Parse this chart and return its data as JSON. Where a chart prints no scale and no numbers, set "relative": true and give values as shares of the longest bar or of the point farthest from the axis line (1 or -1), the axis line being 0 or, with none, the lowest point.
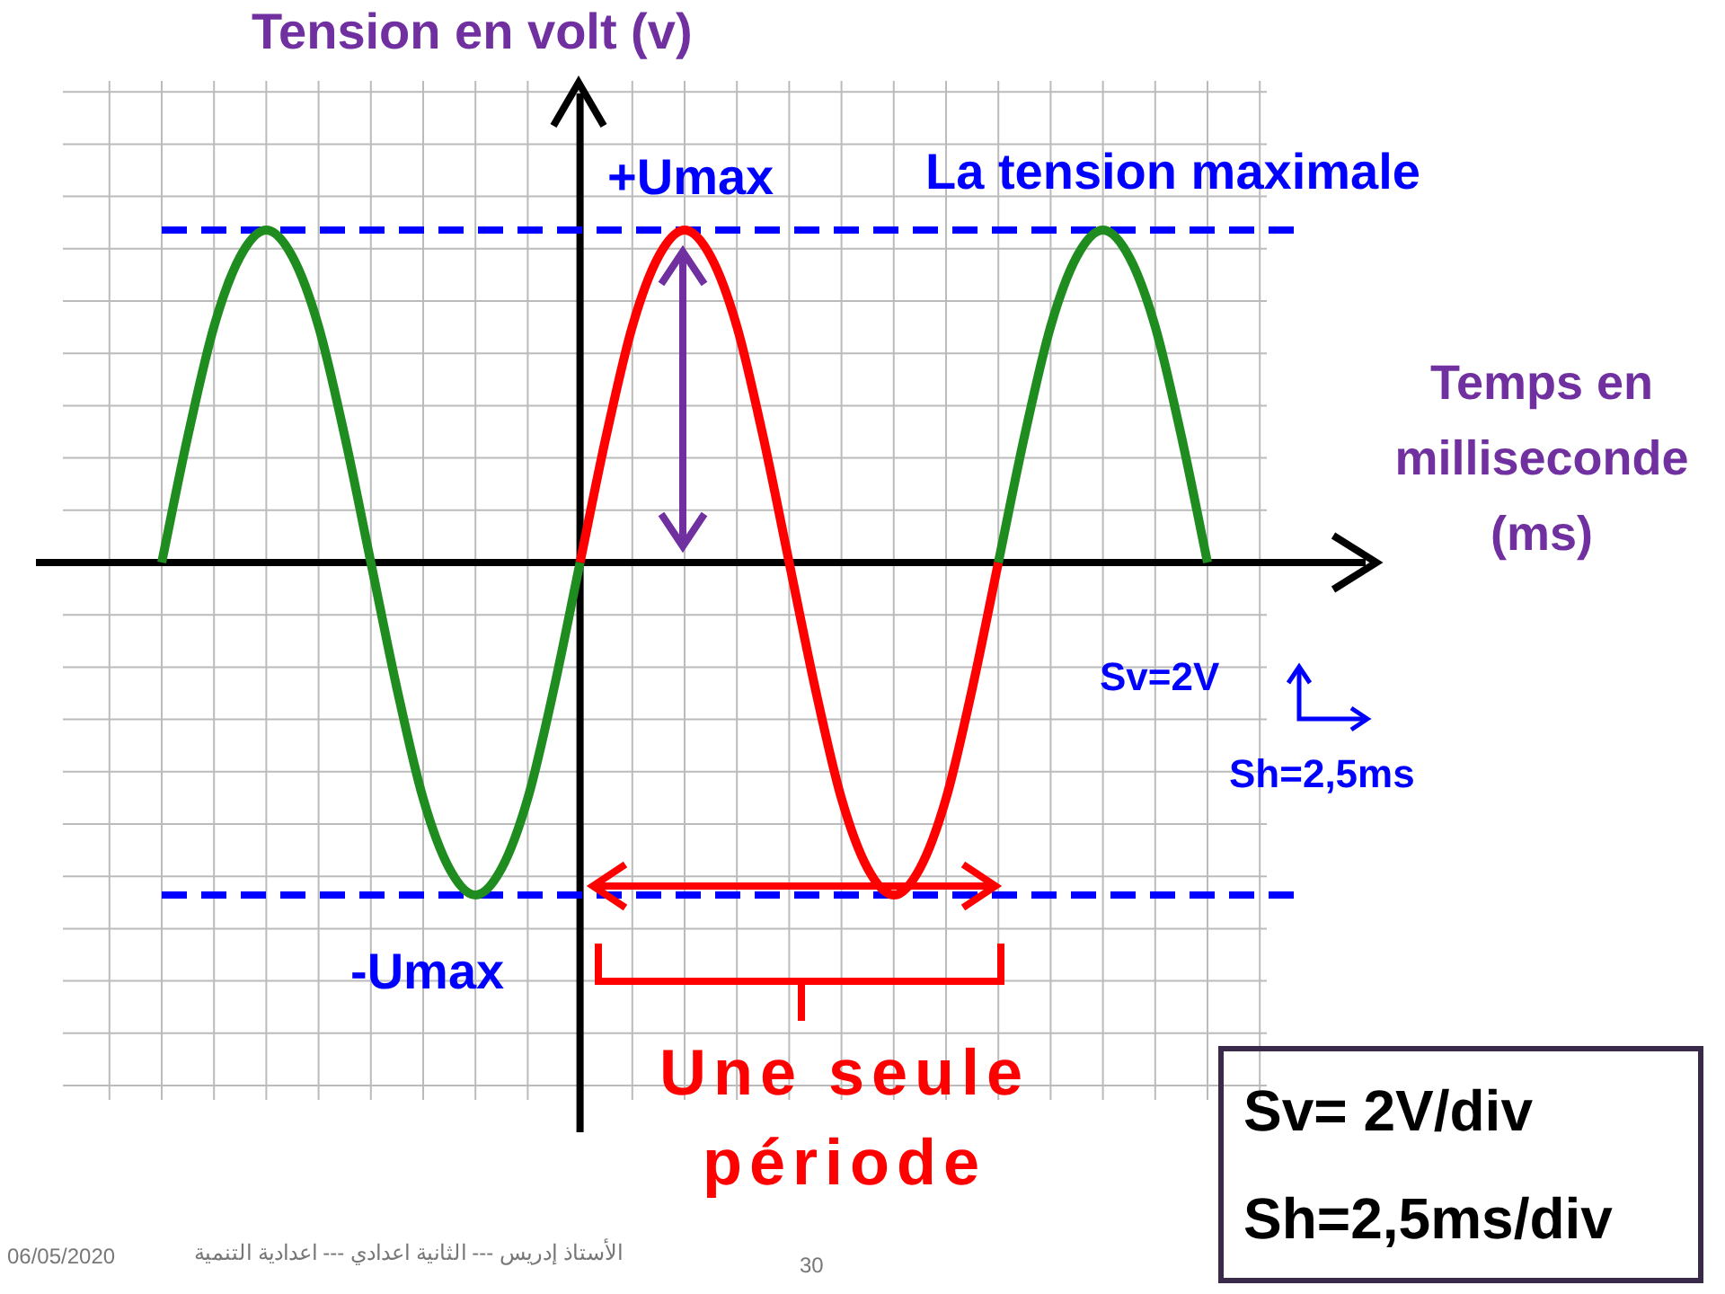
{
  "chart_data": {
    "type": "line",
    "relative": true,
    "ylabel": "Tension en volt (v)",
    "xlabel": "Temps en milliseconde (ms)",
    "categories": [
      null,
      null,
      null,
      null,
      null,
      null,
      null,
      null,
      null,
      null,
      null,
      null,
      null,
      null,
      null,
      null,
      null,
      null,
      null,
      null,
      null,
      null,
      null,
      null,
      null,
      null,
      null,
      null,
      null,
      null,
      null,
      null,
      null,
      null,
      null,
      null,
      null,
      null,
      null,
      null,
      null
    ],
    "series": [
      {
        "color": "#1e8c1e",
        "values": [
          0,
          0.38,
          0.71,
          0.92,
          1,
          0.92,
          0.71,
          0.38,
          0,
          -0.38,
          -0.71,
          -0.92,
          -1,
          -0.92,
          -0.71,
          -0.38,
          0,
          null,
          null,
          null,
          null,
          null,
          null,
          null,
          null,
          null,
          null,
          null,
          null,
          null,
          null,
          null,
          0,
          0.38,
          0.71,
          0.92,
          1,
          0.92,
          0.71,
          0.38,
          0
        ]
      },
      {
        "color": "#ff0000",
        "values": [
          null,
          null,
          null,
          null,
          null,
          null,
          null,
          null,
          null,
          null,
          null,
          null,
          null,
          null,
          null,
          null,
          0,
          0.38,
          0.71,
          0.92,
          1,
          0.92,
          0.71,
          0.38,
          0,
          -0.38,
          -0.71,
          -0.92,
          -1,
          -0.92,
          -0.71,
          -0.38,
          0,
          null,
          null,
          null,
          null,
          null,
          null,
          null,
          null
        ]
      }
    ],
    "ref_lines": [
      {
        "axis": "y",
        "value": 1,
        "label": "+Umax",
        "color": "#0000ff",
        "line_style": "dashed"
      },
      {
        "axis": "y",
        "value": -1,
        "label": "-Umax",
        "color": "#0000ff",
        "line_style": "dashed"
      }
    ],
    "grid": true,
    "legend": false,
    "marker": "none",
    "line_style": "solid",
    "annotations": [
      "La tension maximale",
      "Sv=2V",
      "Sh=2,5ms",
      "Une seule période",
      "Sv= 2V/div",
      "Sh=2,5ms/div",
      "06/05/2020",
      "الأستاذ إدريس --- الثانية اعدادي --- اعدادية التنمية",
      "30"
    ]
  }
}
